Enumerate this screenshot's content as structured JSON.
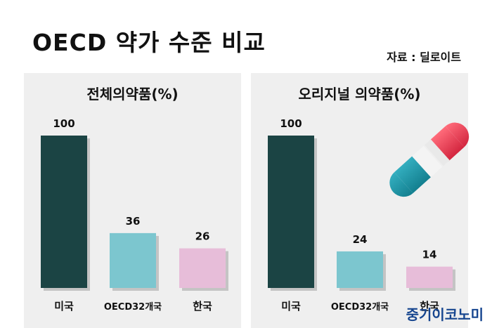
{
  "title": "OECD 약가 수준 비교",
  "source": "자료 : 딜로이트",
  "brand": "중기이코노미",
  "colors": {
    "us": "#1b4444",
    "oecd": "#7cc6cf",
    "korea": "#e7bdd9",
    "panel": "#efefef",
    "brand": "#16458f"
  },
  "chart_data": [
    {
      "type": "bar",
      "title": "전체의약품(%)",
      "categories": [
        "미국",
        "OECD32개국",
        "한국"
      ],
      "values": [
        100,
        36,
        26
      ],
      "ylim": [
        0,
        100
      ]
    },
    {
      "type": "bar",
      "title": "오리지널 의약품(%)",
      "categories": [
        "미국",
        "OECD32개국",
        "한국"
      ],
      "values": [
        100,
        24,
        14
      ],
      "ylim": [
        0,
        100
      ]
    }
  ]
}
